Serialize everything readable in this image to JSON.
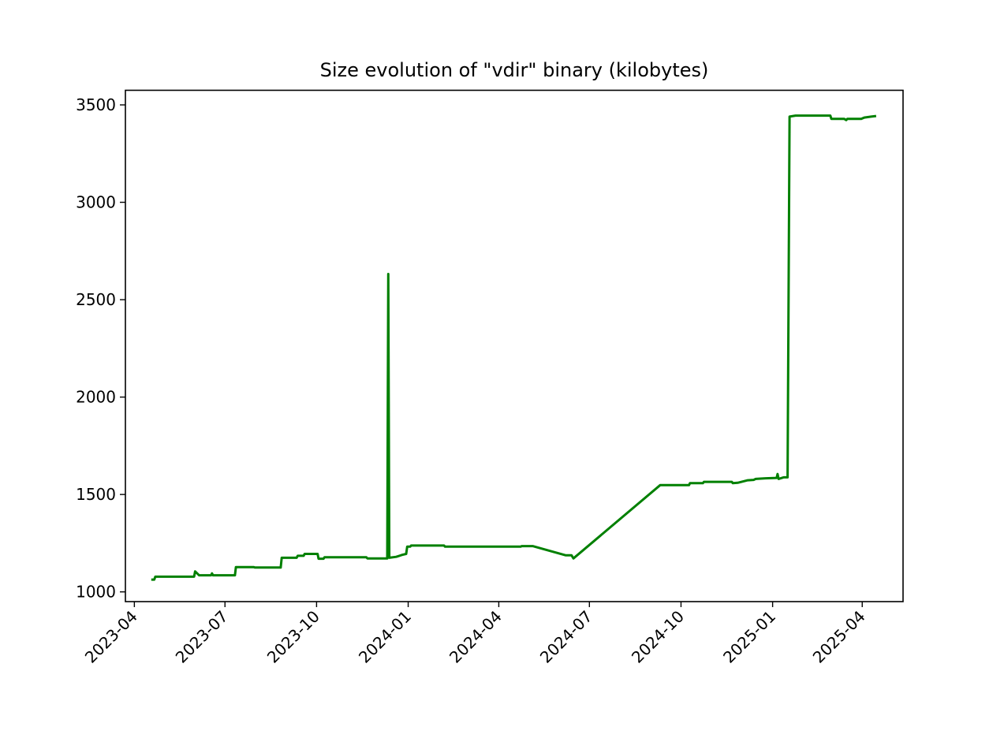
{
  "chart_data": {
    "type": "line",
    "title": "Size evolution of \"vdir\" binary (kilobytes)",
    "xlabel": "",
    "ylabel": "",
    "x_axis": "date",
    "xlim": [
      "2023-03-23",
      "2025-05-12"
    ],
    "ylim": [
      950,
      3575
    ],
    "x_ticks": [
      "2023-04",
      "2023-07",
      "2023-10",
      "2024-01",
      "2024-04",
      "2024-07",
      "2024-10",
      "2025-01",
      "2025-04"
    ],
    "y_ticks": [
      1000,
      1500,
      2000,
      2500,
      3000,
      3500
    ],
    "grid": false,
    "legend": "none",
    "series": [
      {
        "color": "#008000",
        "points": [
          [
            "2023-04-18",
            1063
          ],
          [
            "2023-04-21",
            1063
          ],
          [
            "2023-04-22",
            1078
          ],
          [
            "2023-05-31",
            1078
          ],
          [
            "2023-06-01",
            1105
          ],
          [
            "2023-06-05",
            1085
          ],
          [
            "2023-06-17",
            1085
          ],
          [
            "2023-06-18",
            1095
          ],
          [
            "2023-06-19",
            1085
          ],
          [
            "2023-07-11",
            1085
          ],
          [
            "2023-07-12",
            1127
          ],
          [
            "2023-07-30",
            1127
          ],
          [
            "2023-07-31",
            1125
          ],
          [
            "2023-08-26",
            1125
          ],
          [
            "2023-08-27",
            1175
          ],
          [
            "2023-09-11",
            1175
          ],
          [
            "2023-09-12",
            1185
          ],
          [
            "2023-09-18",
            1185
          ],
          [
            "2023-09-19",
            1195
          ],
          [
            "2023-10-02",
            1195
          ],
          [
            "2023-10-03",
            1170
          ],
          [
            "2023-10-08",
            1170
          ],
          [
            "2023-10-09",
            1178
          ],
          [
            "2023-11-20",
            1178
          ],
          [
            "2023-11-21",
            1172
          ],
          [
            "2023-12-11",
            1172
          ],
          [
            "2023-12-12",
            2632
          ],
          [
            "2023-12-13",
            1175
          ],
          [
            "2023-12-20",
            1180
          ],
          [
            "2023-12-26",
            1190
          ],
          [
            "2023-12-30",
            1195
          ],
          [
            "2023-12-31",
            1232
          ],
          [
            "2024-01-03",
            1232
          ],
          [
            "2024-01-04",
            1238
          ],
          [
            "2024-02-06",
            1238
          ],
          [
            "2024-02-07",
            1232
          ],
          [
            "2024-04-23",
            1232
          ],
          [
            "2024-04-24",
            1235
          ],
          [
            "2024-05-05",
            1235
          ],
          [
            "2024-06-07",
            1188
          ],
          [
            "2024-06-13",
            1188
          ],
          [
            "2024-06-15",
            1172
          ],
          [
            "2024-09-10",
            1548
          ],
          [
            "2024-10-09",
            1548
          ],
          [
            "2024-10-10",
            1558
          ],
          [
            "2024-10-23",
            1558
          ],
          [
            "2024-10-24",
            1565
          ],
          [
            "2024-11-21",
            1565
          ],
          [
            "2024-11-22",
            1558
          ],
          [
            "2024-11-27",
            1560
          ],
          [
            "2024-12-07",
            1573
          ],
          [
            "2024-12-13",
            1575
          ],
          [
            "2024-12-15",
            1580
          ],
          [
            "2024-12-25",
            1583
          ],
          [
            "2025-01-05",
            1585
          ],
          [
            "2025-01-06",
            1605
          ],
          [
            "2025-01-07",
            1580
          ],
          [
            "2025-01-12",
            1588
          ],
          [
            "2025-01-16",
            1588
          ],
          [
            "2025-01-18",
            3440
          ],
          [
            "2025-01-24",
            3445
          ],
          [
            "2025-02-28",
            3445
          ],
          [
            "2025-03-01",
            3428
          ],
          [
            "2025-03-14",
            3428
          ],
          [
            "2025-03-16",
            3422
          ],
          [
            "2025-03-17",
            3428
          ],
          [
            "2025-03-31",
            3428
          ],
          [
            "2025-04-03",
            3435
          ],
          [
            "2025-04-10",
            3440
          ],
          [
            "2025-04-15",
            3443
          ]
        ]
      }
    ]
  }
}
